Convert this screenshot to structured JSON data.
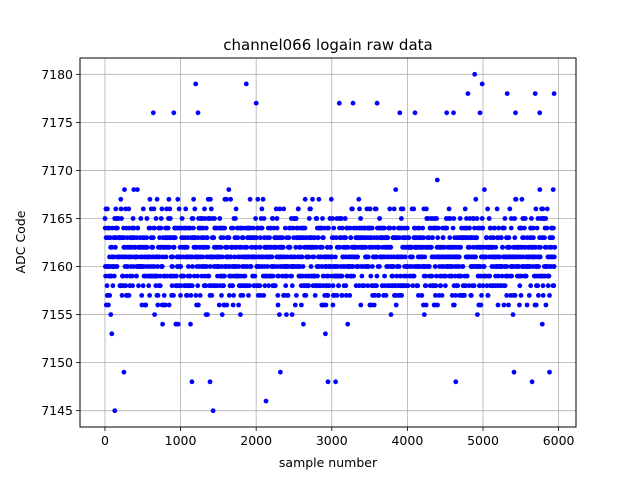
{
  "chart_data": {
    "type": "scatter",
    "title": "channel066 logain raw data",
    "xlabel": "sample number",
    "ylabel": "ADC Code",
    "xlim": [
      -330,
      6230
    ],
    "ylim": [
      7143.3,
      7181.7
    ],
    "xticks": [
      0,
      1000,
      2000,
      3000,
      4000,
      5000,
      6000
    ],
    "yticks": [
      7145,
      7150,
      7155,
      7160,
      7165,
      7170,
      7175,
      7180
    ],
    "grid": true,
    "marker": "circle",
    "color": "#0000ff",
    "n_samples": 5950,
    "core_range": [
      7155,
      7166
    ],
    "outliers": [
      {
        "x": 130,
        "y": 7145
      },
      {
        "x": 1430,
        "y": 7145
      },
      {
        "x": 2130,
        "y": 7146
      },
      {
        "x": 250,
        "y": 7149
      },
      {
        "x": 2320,
        "y": 7149
      },
      {
        "x": 5410,
        "y": 7149
      },
      {
        "x": 5880,
        "y": 7149
      },
      {
        "x": 1150,
        "y": 7148
      },
      {
        "x": 1390,
        "y": 7148
      },
      {
        "x": 2950,
        "y": 7148
      },
      {
        "x": 3050,
        "y": 7148
      },
      {
        "x": 4640,
        "y": 7148
      },
      {
        "x": 5650,
        "y": 7148
      },
      {
        "x": 1200,
        "y": 7179
      },
      {
        "x": 1870,
        "y": 7179
      },
      {
        "x": 4990,
        "y": 7179
      },
      {
        "x": 4890,
        "y": 7180
      },
      {
        "x": 5940,
        "y": 7178
      },
      {
        "x": 4800,
        "y": 7178
      },
      {
        "x": 5690,
        "y": 7178
      },
      {
        "x": 5320,
        "y": 7178
      },
      {
        "x": 2000,
        "y": 7177
      },
      {
        "x": 3100,
        "y": 7177
      },
      {
        "x": 3280,
        "y": 7177
      },
      {
        "x": 3600,
        "y": 7177
      },
      {
        "x": 640,
        "y": 7176
      },
      {
        "x": 910,
        "y": 7176
      },
      {
        "x": 1230,
        "y": 7176
      },
      {
        "x": 3900,
        "y": 7176
      },
      {
        "x": 4100,
        "y": 7176
      },
      {
        "x": 4520,
        "y": 7176
      },
      {
        "x": 4610,
        "y": 7176
      },
      {
        "x": 4960,
        "y": 7176
      },
      {
        "x": 5430,
        "y": 7176
      },
      {
        "x": 5750,
        "y": 7176
      }
    ],
    "colors": {
      "marker": "#0000ff",
      "grid": "#b0b0b0"
    }
  }
}
